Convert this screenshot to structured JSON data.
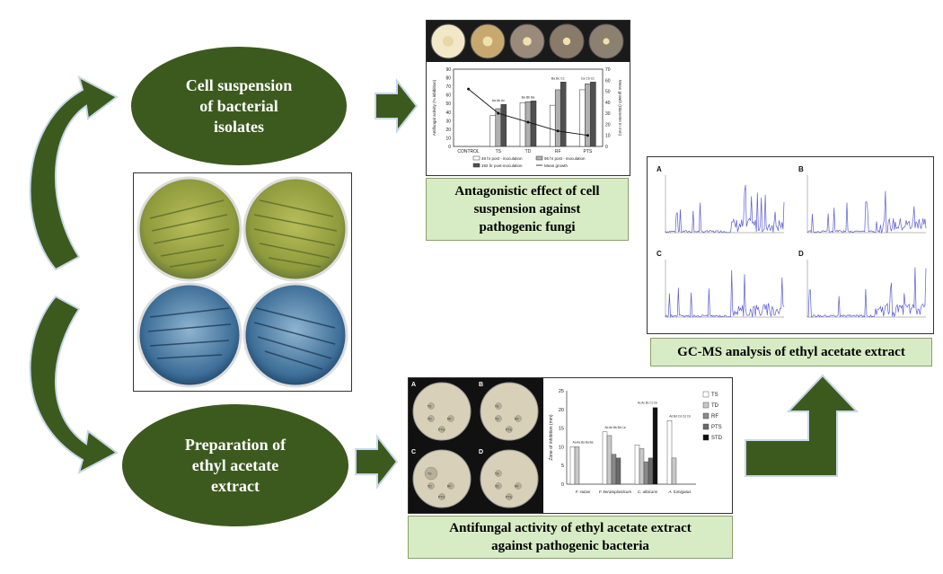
{
  "ellipses": {
    "top": "Cell suspension\nof bacterial\nisolates",
    "bottom": "Preparation of\nethyl acetate\nextract"
  },
  "captions": {
    "antagonistic": "Antagonistic effect of cell\nsuspension against\npathogenic fungi",
    "gcms": "GC-MS analysis of ethyl acetate extract",
    "antifungal": "Antifungal activity of ethyl acetate extract\nagainst pathogenic bacteria"
  },
  "colors": {
    "ellipse": "#3d5a1e",
    "arrow": "#3d5a1e",
    "caption_bg": "#d7ecc4",
    "chromatogram": "#5b5bd6"
  },
  "chart_data": [
    {
      "type": "bar",
      "categories": [
        "CONTROL",
        "TS",
        "TD",
        "RF",
        "PTS"
      ],
      "series": [
        {
          "name": "48 hr post - inoculation",
          "values": [
            0,
            36,
            51,
            48,
            66
          ]
        },
        {
          "name": "96 hr post - inoculation",
          "values": [
            0,
            44,
            52,
            66,
            73
          ]
        },
        {
          "name": "192 hr post-inoculation",
          "values": [
            0,
            49,
            53,
            75,
            75
          ]
        },
        {
          "name": "Mean growth",
          "values": [
            52,
            30,
            22,
            14,
            10
          ],
          "kind": "line"
        }
      ],
      "ylabel": "Antifungal activity (% inhibition)",
      "y2label": "Mean growth (Diameter in mm)",
      "ylim": [
        0,
        90
      ],
      "yticks": [
        "0",
        "10",
        "20",
        "30",
        "40",
        "50",
        "60",
        "70",
        "80",
        "90"
      ],
      "y2ticks": [
        "0",
        "10",
        "20",
        "30",
        "40",
        "50",
        "60",
        "70"
      ],
      "bar_labels": [
        "",
        "Aa Ab Av",
        "Ba Bb Ba",
        "Ba Bc Cc",
        "Ca Cb Cc"
      ]
    },
    {
      "type": "bar",
      "categories": [
        "F. solani",
        "F. keratoplasticum",
        "C. albicans",
        "A. fumigatus"
      ],
      "series": [
        {
          "name": "TS",
          "values": [
            10,
            14,
            10.5,
            17
          ]
        },
        {
          "name": "TD",
          "values": [
            10,
            13,
            9.5,
            7
          ]
        },
        {
          "name": "RF",
          "values": [
            0,
            8,
            6,
            0
          ]
        },
        {
          "name": "PTS",
          "values": [
            0,
            7,
            7,
            0
          ]
        },
        {
          "name": "STD",
          "values": [
            0,
            0,
            20.5,
            0
          ]
        }
      ],
      "ylabel": "Zone of inhibition (mm)",
      "ylim": [
        0,
        25
      ],
      "yticks": [
        "0",
        "5",
        "10",
        "15",
        "20",
        "25"
      ],
      "bar_labels": [
        "Aa Aa Ba Ba Ba",
        "Ab Ab Bb Bb Ca",
        "Ac Ac Bc Cc Dc",
        "Ad Bd Cd Cd Cd"
      ]
    }
  ],
  "petri_letters": [
    "A",
    "B",
    "C",
    "D"
  ],
  "disc_labels": [
    "TS",
    "TD",
    "RF",
    "PTS"
  ],
  "gcms_letters": [
    "A",
    "B",
    "C",
    "D"
  ]
}
